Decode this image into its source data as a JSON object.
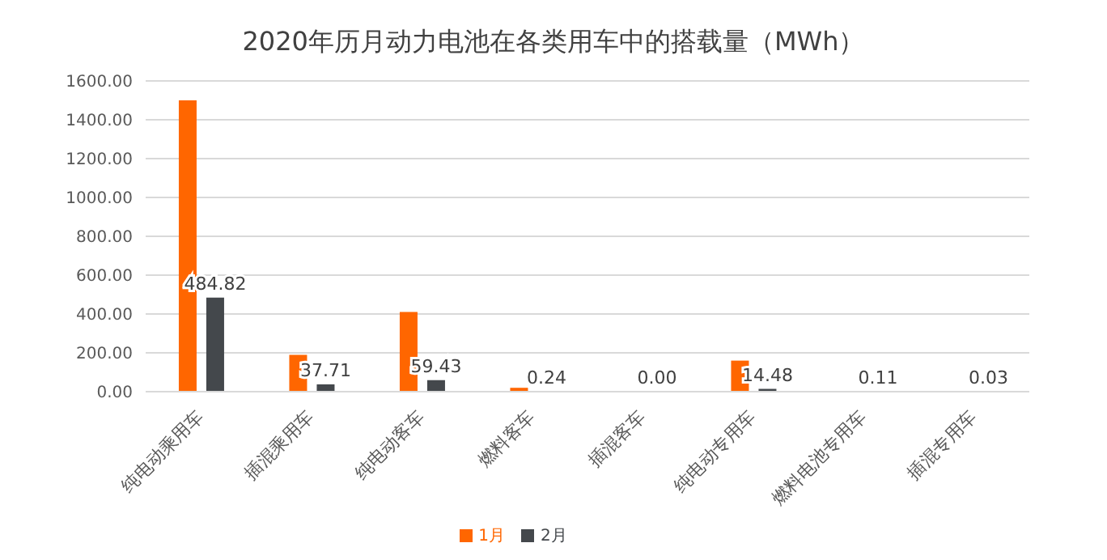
{
  "chart_data": {
    "type": "bar",
    "title": "2020年历月动力电池在各类用车中的搭载量（MWh）",
    "categories": [
      "纯电动乘用车",
      "插混乘用车",
      "纯电动客车",
      "燃料客车",
      "插混客车",
      "纯电动专用车",
      "燃料电池专用车",
      "插混专用车"
    ],
    "series": [
      {
        "name": "1月",
        "color": "#ff6600",
        "values": [
          1500,
          190,
          410,
          20,
          0,
          160,
          0,
          0
        ]
      },
      {
        "name": "2月",
        "color": "#44484c",
        "values": [
          484.82,
          37.71,
          59.43,
          0.24,
          0.0,
          14.48,
          0.11,
          0.03
        ],
        "value_labels": [
          "484.82",
          "37.71",
          "59.43",
          "0.24",
          "0.00",
          "14.48",
          "0.11",
          "0.03"
        ]
      }
    ],
    "ylim": [
      0,
      1600
    ],
    "yticks": [
      {
        "value": 0,
        "label": "0.00"
      },
      {
        "value": 200,
        "label": "200.00"
      },
      {
        "value": 400,
        "label": "400.00"
      },
      {
        "value": 600,
        "label": "600.00"
      },
      {
        "value": 800,
        "label": "800.00"
      },
      {
        "value": 1000,
        "label": "1000.00"
      },
      {
        "value": 1200,
        "label": "1200.00"
      },
      {
        "value": 1400,
        "label": "1400.00"
      },
      {
        "value": 1600,
        "label": "1600.00"
      }
    ],
    "grid": "y",
    "legend": "bottom"
  }
}
